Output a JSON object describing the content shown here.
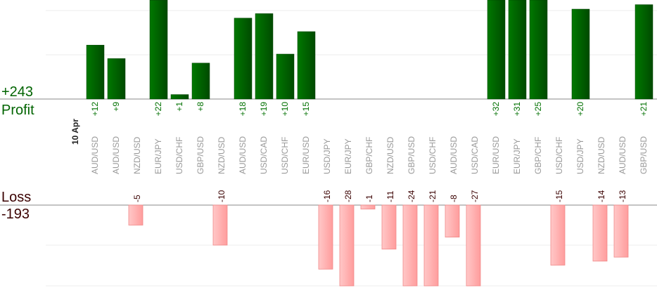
{
  "chart_data": {
    "type": "bar",
    "date_label": "10 Apr",
    "profit": {
      "label": "Profit",
      "total": "+243",
      "color": "#006400"
    },
    "loss": {
      "label": "Loss",
      "total": "-193",
      "color": "#ff9a9a"
    },
    "categories": [
      "AUD/USD",
      "AUD/USD",
      "NZD/USD",
      "EUR/JPY",
      "USD/CHF",
      "GBP/USD",
      "NZD/USD",
      "AUD/USD",
      "USD/CAD",
      "USD/CHF",
      "EUR/USD",
      "USD/JPY",
      "EUR/JPY",
      "GBP/CHF",
      "NZD/USD",
      "GBP/USD",
      "USD/CHF",
      "AUD/USD",
      "USD/CAD",
      "EUR/USD",
      "EUR/JPY",
      "GBP/CHF",
      "USD/CHF",
      "USD/JPY",
      "NZD/USD",
      "AUD/USD",
      "GBP/USD"
    ],
    "values": [
      12,
      9,
      -5,
      22,
      1,
      8,
      -10,
      18,
      19,
      10,
      15,
      -16,
      -28,
      -1,
      -11,
      -24,
      -21,
      -8,
      -27,
      32,
      31,
      25,
      -15,
      20,
      -14,
      -13,
      21
    ],
    "value_labels": [
      "+12",
      "+9",
      "-5",
      "+22",
      "+1",
      "+8",
      "-10",
      "+18",
      "+19",
      "+10",
      "+15",
      "-16",
      "-28",
      "-1",
      "-11",
      "-24",
      "-21",
      "-8",
      "-27",
      "+32",
      "+31",
      "+25",
      "-15",
      "+20",
      "-14",
      "-13",
      "+21"
    ],
    "grid": true
  }
}
